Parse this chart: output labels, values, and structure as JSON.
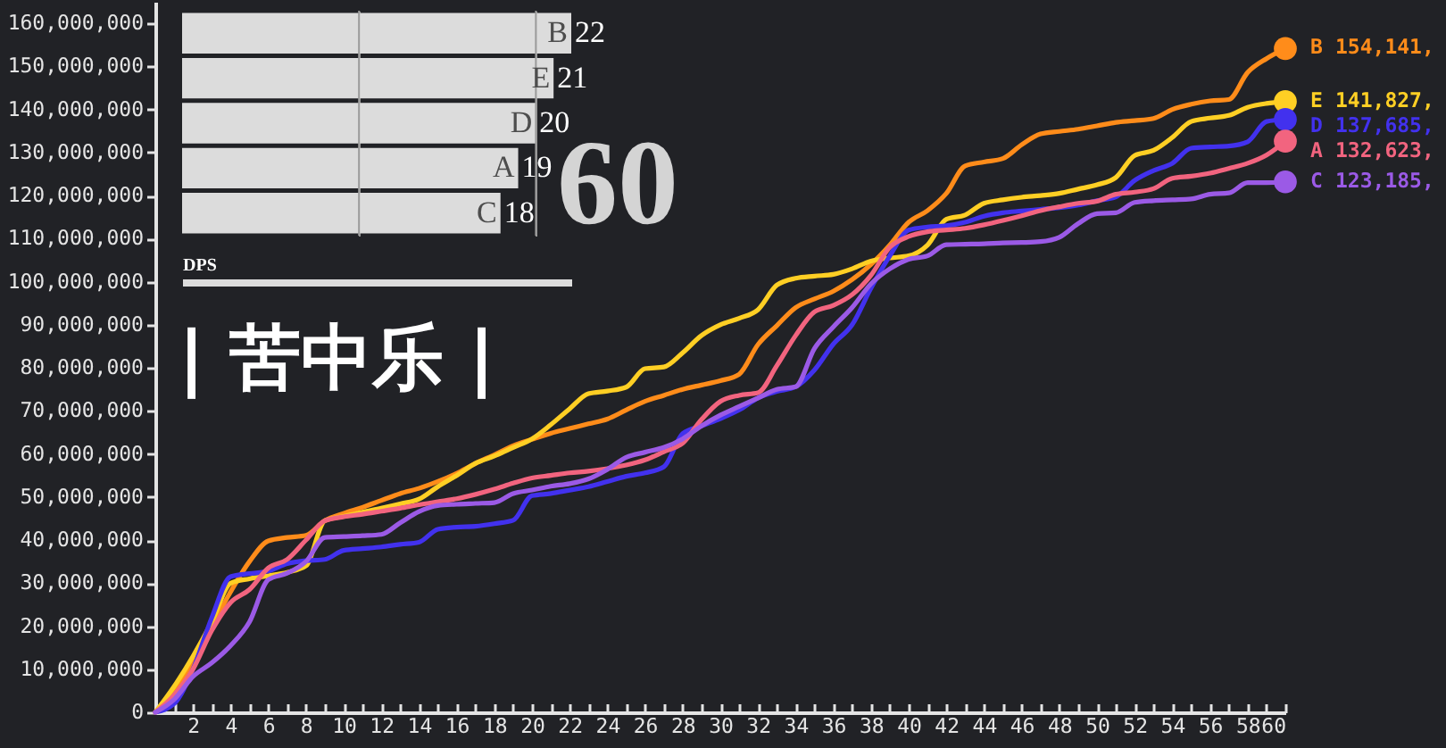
{
  "chart_data": [
    {
      "type": "line",
      "title": "| 苦中乐 |",
      "x": [
        0,
        1,
        2,
        3,
        4,
        5,
        6,
        7,
        8,
        9,
        10,
        11,
        12,
        13,
        14,
        15,
        16,
        17,
        18,
        19,
        20,
        21,
        22,
        23,
        24,
        25,
        26,
        27,
        28,
        29,
        30,
        31,
        32,
        33,
        34,
        35,
        36,
        37,
        38,
        39,
        40,
        41,
        42,
        43,
        44,
        45,
        46,
        47,
        48,
        49,
        50,
        51,
        52,
        53,
        54,
        55,
        56,
        57,
        58,
        59,
        60
      ],
      "xlim": [
        0,
        60
      ],
      "xticks": [
        {
          "value": 0,
          "label": null
        },
        {
          "value": 1,
          "label": null
        },
        2,
        {
          "value": 3,
          "label": null
        },
        4,
        {
          "value": 5,
          "label": null
        },
        6,
        {
          "value": 7,
          "label": null
        },
        8,
        {
          "value": 9,
          "label": null
        },
        10,
        {
          "value": 11,
          "label": null
        },
        12,
        {
          "value": 13,
          "label": null
        },
        14,
        {
          "value": 15,
          "label": null
        },
        16,
        {
          "value": 17,
          "label": null
        },
        18,
        {
          "value": 19,
          "label": null
        },
        20,
        {
          "value": 21,
          "label": null
        },
        22,
        {
          "value": 23,
          "label": null
        },
        24,
        {
          "value": 25,
          "label": null
        },
        26,
        {
          "value": 27,
          "label": null
        },
        28,
        {
          "value": 29,
          "label": null
        },
        30,
        {
          "value": 31,
          "label": null
        },
        32,
        {
          "value": 33,
          "label": null
        },
        34,
        {
          "value": 35,
          "label": null
        },
        36,
        {
          "value": 37,
          "label": null
        },
        38,
        {
          "value": 39,
          "label": null
        },
        40,
        {
          "value": 41,
          "label": null
        },
        42,
        {
          "value": 43,
          "label": null
        },
        44,
        {
          "value": 45,
          "label": null
        },
        46,
        {
          "value": 47,
          "label": null
        },
        48,
        {
          "value": 49,
          "label": null
        },
        50,
        {
          "value": 51,
          "label": null
        },
        52,
        {
          "value": 53,
          "label": null
        },
        54,
        {
          "value": 55,
          "label": null
        },
        56,
        {
          "value": 57,
          "label": null
        },
        58,
        {
          "value": 59,
          "label": null
        },
        60
      ],
      "ylim": [
        0,
        165000000
      ],
      "yticks": [
        0,
        {
          "value": 10000000,
          "label": "10,000,000"
        },
        {
          "value": 20000000,
          "label": "20,000,000"
        },
        {
          "value": 30000000,
          "label": "30,000,000"
        },
        {
          "value": 40000000,
          "label": "40,000,000"
        },
        {
          "value": 50000000,
          "label": "50,000,000"
        },
        {
          "value": 60000000,
          "label": "60,000,000"
        },
        {
          "value": 70000000,
          "label": "70,000,000"
        },
        {
          "value": 80000000,
          "label": "80,000,000"
        },
        {
          "value": 90000000,
          "label": "90,000,000"
        },
        {
          "value": 100000000,
          "label": "100,000,000"
        },
        {
          "value": 110000000,
          "label": "110,000,000"
        },
        {
          "value": 120000000,
          "label": "120,000,000"
        },
        {
          "value": 130000000,
          "label": "130,000,000"
        },
        {
          "value": 140000000,
          "label": "140,000,000"
        },
        {
          "value": 150000000,
          "label": "150,000,000"
        },
        {
          "value": 160000000,
          "label": "160,000,000"
        }
      ],
      "series": [
        {
          "type": "line",
          "name": "B",
          "color": "#ff8c1a",
          "values": [
            0,
            5000000,
            12000000,
            20000000,
            28000000,
            35000000,
            39800000,
            40600000,
            41100000,
            44500000,
            46200000,
            47600000,
            49200000,
            50800000,
            52000000,
            53600000,
            55500000,
            57800000,
            59800000,
            61900000,
            63400000,
            64800000,
            65900000,
            67000000,
            68100000,
            70200000,
            72200000,
            73600000,
            75000000,
            76000000,
            77000000,
            78500000,
            85400000,
            89800000,
            94000000,
            96000000,
            97800000,
            100500000,
            104000000,
            108500000,
            113800000,
            116500000,
            120500000,
            126900000,
            127800000,
            128600000,
            131800000,
            134300000,
            134900000,
            135400000,
            136200000,
            137000000,
            137400000,
            137900000,
            140000000,
            141200000,
            142000000,
            142300000,
            148600000,
            151800000,
            154141000
          ]
        },
        {
          "type": "line",
          "name": "E",
          "color": "#ffcf24",
          "values": [
            0,
            6000000,
            13000000,
            21000000,
            30000000,
            31000000,
            31700000,
            32500000,
            34000000,
            44500000,
            45500000,
            46500000,
            47400000,
            48400000,
            49500000,
            52400000,
            55000000,
            57800000,
            59500000,
            61500000,
            63500000,
            66800000,
            70500000,
            74000000,
            74600000,
            75500000,
            79800000,
            80200000,
            83500000,
            87500000,
            90000000,
            91500000,
            93500000,
            99200000,
            100800000,
            101300000,
            101700000,
            103000000,
            104800000,
            105500000,
            106000000,
            108500000,
            114500000,
            115500000,
            118200000,
            119000000,
            119600000,
            120000000,
            120500000,
            121500000,
            122500000,
            124200000,
            129300000,
            130500000,
            133500000,
            137200000,
            138000000,
            138600000,
            140500000,
            141400000,
            141827000
          ]
        },
        {
          "type": "line",
          "name": "D",
          "color": "#4231ee",
          "values": [
            0,
            2000000,
            10000000,
            22000000,
            31500000,
            32200000,
            32800000,
            34500000,
            35200000,
            35500000,
            37600000,
            38000000,
            38400000,
            39000000,
            39500000,
            42500000,
            43000000,
            43200000,
            43800000,
            44600000,
            50300000,
            50800000,
            51600000,
            52400000,
            53600000,
            54800000,
            55600000,
            57000000,
            64700000,
            66500000,
            68200000,
            70200000,
            73000000,
            74500000,
            75600000,
            79500000,
            85500000,
            90000000,
            98500000,
            106000000,
            112000000,
            112700000,
            113000000,
            113800000,
            115200000,
            116000000,
            116400000,
            116800000,
            117200000,
            117800000,
            118800000,
            119700000,
            123500000,
            125800000,
            127500000,
            131000000,
            131300000,
            131500000,
            132500000,
            137200000,
            137685000
          ]
        },
        {
          "type": "line",
          "name": "A",
          "color": "#f2647f",
          "values": [
            0,
            4000000,
            10000000,
            19000000,
            25500000,
            28500000,
            33500000,
            35500000,
            40000000,
            44500000,
            45400000,
            46000000,
            46700000,
            47400000,
            48200000,
            48900000,
            49600000,
            50600000,
            51800000,
            53200000,
            54400000,
            55000000,
            55600000,
            56000000,
            56600000,
            57400000,
            58600000,
            60500000,
            62500000,
            68000000,
            72200000,
            73600000,
            74200000,
            80500000,
            87500000,
            93000000,
            94500000,
            97000000,
            101500000,
            108000000,
            110500000,
            111600000,
            112000000,
            112400000,
            113200000,
            114200000,
            115300000,
            116500000,
            117400000,
            118200000,
            118700000,
            120300000,
            120800000,
            121600000,
            124000000,
            124500000,
            125200000,
            126300000,
            127500000,
            129400000,
            132623000
          ]
        },
        {
          "type": "line",
          "name": "C",
          "color": "#9b5ae6",
          "values": [
            0,
            3000000,
            8300000,
            11500000,
            15500000,
            21000000,
            30800000,
            32300000,
            35000000,
            40600000,
            40800000,
            41000000,
            41300000,
            44000000,
            46600000,
            48000000,
            48300000,
            48500000,
            48700000,
            50800000,
            51600000,
            52500000,
            53100000,
            54200000,
            56400000,
            59200000,
            60400000,
            61500000,
            63500000,
            66500000,
            69000000,
            71000000,
            73000000,
            75000000,
            75600000,
            84500000,
            89500000,
            94000000,
            99500000,
            103000000,
            105200000,
            106000000,
            108600000,
            108700000,
            108800000,
            109000000,
            109100000,
            109300000,
            110300000,
            113500000,
            115800000,
            116000000,
            118400000,
            118800000,
            119000000,
            119200000,
            120300000,
            120600000,
            123000000,
            123000000,
            123185000
          ]
        },
        {
          "type": "scatter",
          "color": "#ff8c1a",
          "marker": "circle",
          "values": [
            null,
            null,
            null,
            null,
            null,
            null,
            null,
            null,
            null,
            null,
            null,
            null,
            null,
            null,
            null,
            null,
            null,
            null,
            null,
            null,
            null,
            null,
            null,
            null,
            null,
            null,
            null,
            null,
            null,
            null,
            null,
            null,
            null,
            null,
            null,
            null,
            null,
            null,
            null,
            null,
            null,
            null,
            null,
            null,
            null,
            null,
            null,
            null,
            null,
            null,
            null,
            null,
            null,
            null,
            null,
            null,
            null,
            null,
            null,
            null,
            154141000
          ]
        },
        {
          "type": "scatter",
          "color": "#ffcf24",
          "marker": "circle",
          "values": [
            null,
            null,
            null,
            null,
            null,
            null,
            null,
            null,
            null,
            null,
            null,
            null,
            null,
            null,
            null,
            null,
            null,
            null,
            null,
            null,
            null,
            null,
            null,
            null,
            null,
            null,
            null,
            null,
            null,
            null,
            null,
            null,
            null,
            null,
            null,
            null,
            null,
            null,
            null,
            null,
            null,
            null,
            null,
            null,
            null,
            null,
            null,
            null,
            null,
            null,
            null,
            null,
            null,
            null,
            null,
            null,
            null,
            null,
            null,
            null,
            141827000
          ]
        },
        {
          "type": "scatter",
          "color": "#4231ee",
          "marker": "circle",
          "values": [
            null,
            null,
            null,
            null,
            null,
            null,
            null,
            null,
            null,
            null,
            null,
            null,
            null,
            null,
            null,
            null,
            null,
            null,
            null,
            null,
            null,
            null,
            null,
            null,
            null,
            null,
            null,
            null,
            null,
            null,
            null,
            null,
            null,
            null,
            null,
            null,
            null,
            null,
            null,
            null,
            null,
            null,
            null,
            null,
            null,
            null,
            null,
            null,
            null,
            null,
            null,
            null,
            null,
            null,
            null,
            null,
            null,
            null,
            null,
            null,
            137685000
          ]
        },
        {
          "type": "scatter",
          "color": "#f2647f",
          "marker": "circle",
          "values": [
            null,
            null,
            null,
            null,
            null,
            null,
            null,
            null,
            null,
            null,
            null,
            null,
            null,
            null,
            null,
            null,
            null,
            null,
            null,
            null,
            null,
            null,
            null,
            null,
            null,
            null,
            null,
            null,
            null,
            null,
            null,
            null,
            null,
            null,
            null,
            null,
            null,
            null,
            null,
            null,
            null,
            null,
            null,
            null,
            null,
            null,
            null,
            null,
            null,
            null,
            null,
            null,
            null,
            null,
            null,
            null,
            null,
            null,
            null,
            null,
            132623000
          ]
        },
        {
          "type": "scatter",
          "color": "#9b5ae6",
          "marker": "circle",
          "values": [
            null,
            null,
            null,
            null,
            null,
            null,
            null,
            null,
            null,
            null,
            null,
            null,
            null,
            null,
            null,
            null,
            null,
            null,
            null,
            null,
            null,
            null,
            null,
            null,
            null,
            null,
            null,
            null,
            null,
            null,
            null,
            null,
            null,
            null,
            null,
            null,
            null,
            null,
            null,
            null,
            null,
            null,
            null,
            null,
            null,
            null,
            null,
            null,
            null,
            null,
            null,
            null,
            null,
            null,
            null,
            null,
            null,
            null,
            null,
            null,
            123185000
          ]
        }
      ],
      "annotations": [
        "154,141,",
        "141,827,",
        "137,685,",
        "132,623,",
        "123,185,"
      ]
    },
    {
      "type": "bar",
      "orientation": "horizontal",
      "categories": [
        "B",
        "E",
        "D",
        "A",
        "C"
      ],
      "values": [
        22,
        21,
        20,
        19,
        18
      ],
      "color": "#dcdcdc",
      "data_labels": true,
      "xlabel": "DPS",
      "xticks": [
        {
          "value": 10,
          "label": null
        },
        {
          "value": 20,
          "label": null
        }
      ],
      "grid": "x",
      "tick_labels": "y",
      "annotations": [
        "60"
      ]
    }
  ]
}
